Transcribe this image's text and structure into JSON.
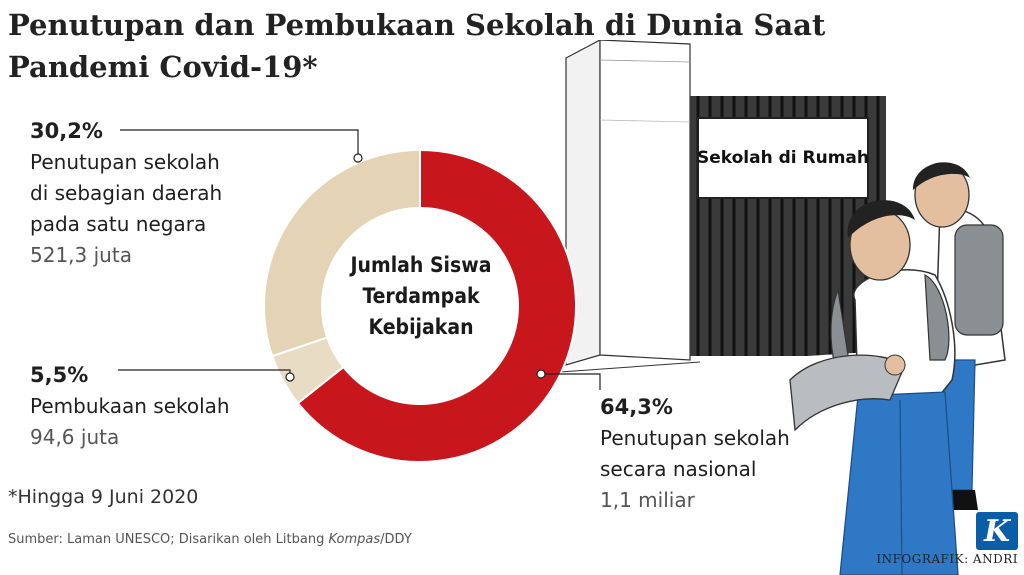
{
  "title": "Penutupan dan Pembukaan Sekolah di Dunia Saat Pandemi Covid-19*",
  "chart_data": {
    "type": "pie",
    "title": "Jumlah Siswa Terdampak Kebijakan",
    "slices": [
      {
        "label": "Penutupan sekolah secara nasional",
        "percent": 64.3,
        "value_text": "1,1 miliar",
        "percent_text": "64,3%",
        "color": "#c8161d"
      },
      {
        "label": "Pembukaan sekolah",
        "percent": 5.5,
        "value_text": "94,6 juta",
        "percent_text": "5,5%",
        "color": "#e9dcc4"
      },
      {
        "label": "Penutupan sekolah di sebagian daerah pada satu negara",
        "percent": 30.2,
        "value_text": "521,3 juta",
        "percent_text": "30,2%",
        "color": "#e4d3b4"
      }
    ]
  },
  "labels": {
    "partial": {
      "pct": "30,2%",
      "desc": "Penutupan sekolah\ndi sebagian daerah\npada satu negara",
      "val": "521,3 juta"
    },
    "open": {
      "pct": "5,5%",
      "desc": "Pembukaan sekolah",
      "val": "94,6 juta"
    },
    "national": {
      "pct": "64,3%",
      "desc": "Penutupan sekolah\nsecara nasional",
      "val": "1,1 miliar"
    }
  },
  "center_text": "Jumlah Siswa Terdampak Kebijakan",
  "sign_text": "Sekolah di Rumah",
  "note": "*Hingga 9 Juni 2020",
  "source_prefix": "Sumber: Laman UNESCO; Disarikan oleh Litbang ",
  "source_italic": "Kompas",
  "source_suffix": "/DDY",
  "credit": "INFOGRAFIK: ANDRI",
  "logo_letter": "K"
}
